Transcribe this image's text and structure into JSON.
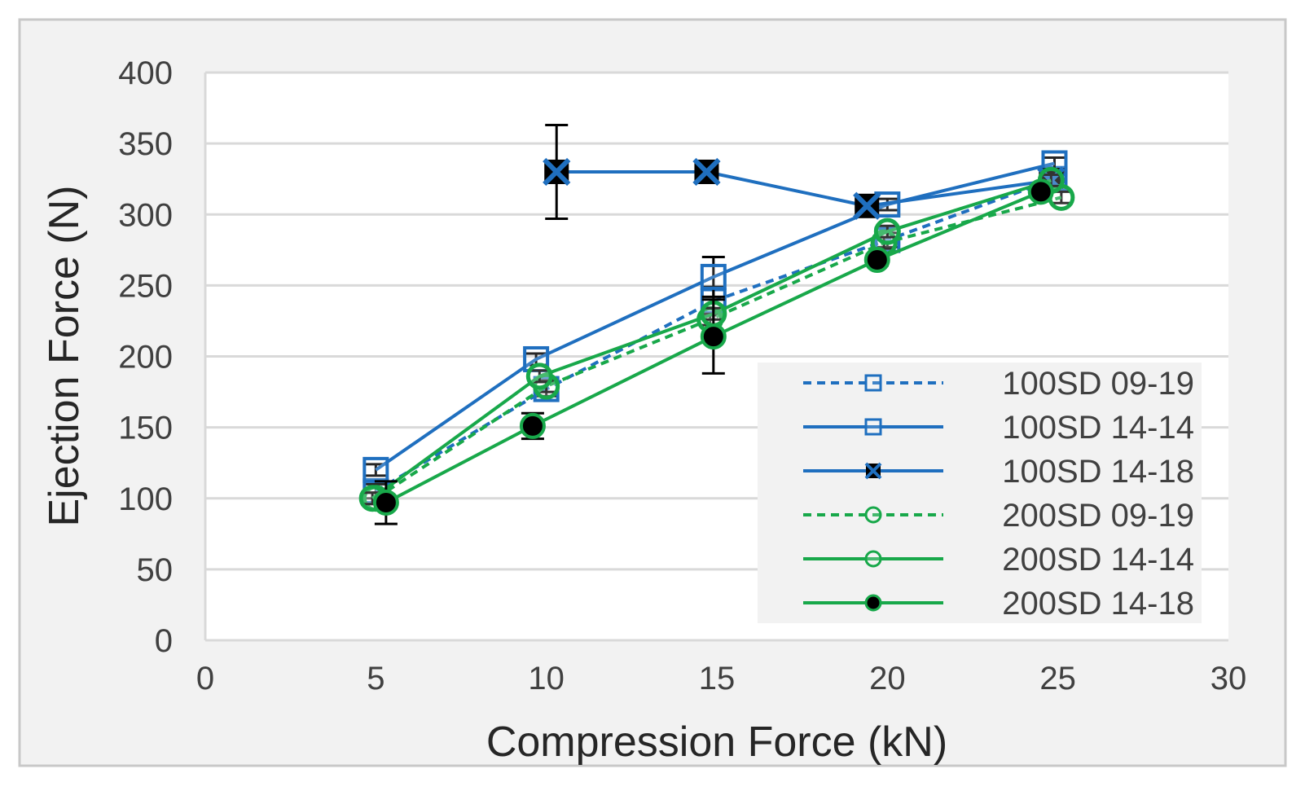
{
  "chart_data": {
    "type": "line",
    "title": "",
    "xlabel": "Compression Force (kN)",
    "ylabel": "Ejection Force (N)",
    "xlim": [
      0,
      30
    ],
    "ylim": [
      0,
      400
    ],
    "xticks": [
      "0",
      "5",
      "10",
      "15",
      "20",
      "25",
      "30"
    ],
    "yticks": [
      "0",
      "50",
      "100",
      "150",
      "200",
      "250",
      "300",
      "350",
      "400"
    ],
    "grid": "horizontal",
    "legend_position": "bottom-right",
    "series": [
      {
        "name": "100SD 09-19",
        "color": "#1f6fbf",
        "line": "dashed",
        "marker": "square-open",
        "points": [
          {
            "x": 5.0,
            "y": 105,
            "err": 5
          },
          {
            "x": 10.0,
            "y": 177,
            "err": 5
          },
          {
            "x": 14.9,
            "y": 239,
            "err": 10
          },
          {
            "x": 20.0,
            "y": 282,
            "err": 5
          },
          {
            "x": 24.9,
            "y": 325,
            "err": 5
          }
        ]
      },
      {
        "name": "100SD 14-14",
        "color": "#1f6fbf",
        "line": "solid",
        "marker": "square-open",
        "points": [
          {
            "x": 5.0,
            "y": 120,
            "err": 4
          },
          {
            "x": 9.7,
            "y": 198,
            "err": 4
          },
          {
            "x": 14.9,
            "y": 256,
            "err": 14
          },
          {
            "x": 20.0,
            "y": 307,
            "err": 4
          },
          {
            "x": 24.9,
            "y": 336,
            "err": 4
          }
        ]
      },
      {
        "name": "100SD 14-18",
        "color": "#1f6fbf",
        "line": "solid",
        "marker": "x-filled",
        "points": [
          {
            "x": 10.3,
            "y": 330,
            "err": 33
          },
          {
            "x": 14.7,
            "y": 330,
            "err": 6
          },
          {
            "x": 19.4,
            "y": 306,
            "err": 4
          },
          {
            "x": 24.8,
            "y": 324,
            "err": 4
          }
        ]
      },
      {
        "name": "200SD 09-19",
        "color": "#18a84a",
        "line": "dashed",
        "marker": "circle-open",
        "points": [
          {
            "x": 5.0,
            "y": 100,
            "err": 4
          },
          {
            "x": 10.0,
            "y": 179,
            "err": 4
          },
          {
            "x": 14.8,
            "y": 226,
            "err": 4
          },
          {
            "x": 19.9,
            "y": 280,
            "err": 4
          },
          {
            "x": 25.1,
            "y": 312,
            "err": 4
          }
        ]
      },
      {
        "name": "200SD 14-14",
        "color": "#18a84a",
        "line": "solid",
        "marker": "circle-open",
        "points": [
          {
            "x": 4.9,
            "y": 100,
            "err": 4
          },
          {
            "x": 9.8,
            "y": 186,
            "err": 4
          },
          {
            "x": 14.9,
            "y": 230,
            "err": 4
          },
          {
            "x": 20.0,
            "y": 288,
            "err": 4
          },
          {
            "x": 24.8,
            "y": 324,
            "err": 4
          }
        ]
      },
      {
        "name": "200SD 14-18",
        "color": "#18a84a",
        "line": "solid",
        "marker": "circle-filled",
        "points": [
          {
            "x": 5.3,
            "y": 97,
            "err": 15
          },
          {
            "x": 9.6,
            "y": 151,
            "err": 9
          },
          {
            "x": 14.9,
            "y": 214,
            "err": 26
          },
          {
            "x": 19.7,
            "y": 268,
            "err": 4
          },
          {
            "x": 24.5,
            "y": 316,
            "err": 4
          }
        ]
      }
    ]
  }
}
